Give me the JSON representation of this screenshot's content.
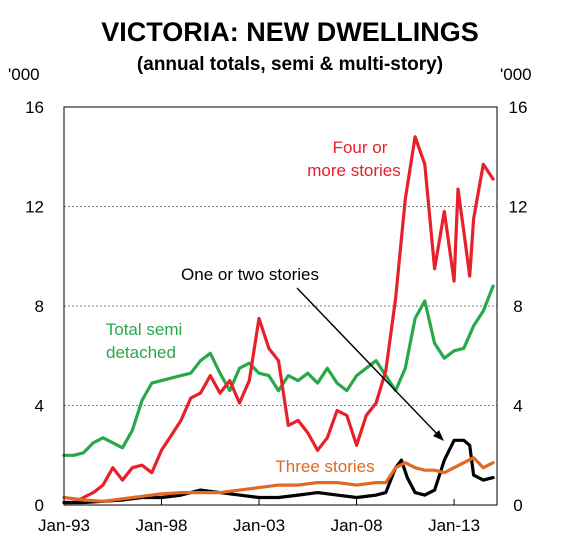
{
  "chart_data": {
    "type": "line",
    "title": "VICTORIA: NEW DWELLINGS",
    "subtitle": "(annual totals, semi & multi-story)",
    "y_unit_left": "'000",
    "y_unit_right": "'000",
    "xlim": [
      1993.0,
      2015.2
    ],
    "ylim": [
      0,
      16
    ],
    "x_ticks": [
      {
        "value": 1993.0,
        "label": "Jan-93"
      },
      {
        "value": 1998.0,
        "label": "Jan-98"
      },
      {
        "value": 2003.0,
        "label": "Jan-03"
      },
      {
        "value": 2008.0,
        "label": "Jan-08"
      },
      {
        "value": 2013.0,
        "label": "Jan-13"
      }
    ],
    "y_ticks": [
      {
        "value": 0,
        "label": "0"
      },
      {
        "value": 4,
        "label": "4"
      },
      {
        "value": 8,
        "label": "8"
      },
      {
        "value": 12,
        "label": "12"
      },
      {
        "value": 16,
        "label": "16"
      }
    ],
    "grid": "horizontal-dashed",
    "annotations": [
      {
        "text": "Four or",
        "color": "#e8202a"
      },
      {
        "text": "more stories",
        "color": "#e8202a"
      },
      {
        "text": "One or two stories",
        "color": "#000000"
      },
      {
        "text": "Total semi",
        "color": "#29a84a"
      },
      {
        "text": "detached",
        "color": "#29a84a"
      },
      {
        "text": "Three stories",
        "color": "#e06a22"
      }
    ],
    "series": [
      {
        "color": "#29a84a",
        "x": [
          1993.0,
          1993.5,
          1994.0,
          1994.5,
          1995.0,
          1995.5,
          1996.0,
          1996.5,
          1997.0,
          1997.5,
          1998.0,
          1998.5,
          1999.0,
          1999.5,
          2000.0,
          2000.5,
          2001.0,
          2001.5,
          2002.0,
          2002.5,
          2003.0,
          2003.5,
          2004.0,
          2004.5,
          2005.0,
          2005.5,
          2006.0,
          2006.5,
          2007.0,
          2007.5,
          2008.0,
          2008.5,
          2009.0,
          2009.5,
          2010.0,
          2010.5,
          2011.0,
          2011.5,
          2012.0,
          2012.5,
          2013.0,
          2013.5,
          2014.0,
          2014.5,
          2015.0
        ],
        "values": [
          2.0,
          2.0,
          2.1,
          2.5,
          2.7,
          2.5,
          2.3,
          3.0,
          4.2,
          4.9,
          5.0,
          5.1,
          5.2,
          5.3,
          5.8,
          6.1,
          5.3,
          4.6,
          5.5,
          5.7,
          5.3,
          5.2,
          4.6,
          5.2,
          5.0,
          5.3,
          4.9,
          5.5,
          4.9,
          4.6,
          5.2,
          5.5,
          5.8,
          5.2,
          4.6,
          5.5,
          7.5,
          8.2,
          6.5,
          5.9,
          6.2,
          6.3,
          7.2,
          7.8,
          8.8
        ]
      },
      {
        "color": "#e8202a",
        "x": [
          1993.0,
          1993.5,
          1994.0,
          1994.5,
          1995.0,
          1995.5,
          1996.0,
          1996.5,
          1997.0,
          1997.5,
          1998.0,
          1998.5,
          1999.0,
          1999.5,
          2000.0,
          2000.5,
          2001.0,
          2001.5,
          2002.0,
          2002.5,
          2003.0,
          2003.5,
          2004.0,
          2004.5,
          2005.0,
          2005.5,
          2006.0,
          2006.5,
          2007.0,
          2007.5,
          2008.0,
          2008.5,
          2009.0,
          2009.5,
          2010.0,
          2010.5,
          2011.0,
          2011.5,
          2012.0,
          2012.5,
          2013.0,
          2013.2,
          2013.5,
          2013.8,
          2014.0,
          2014.5,
          2015.0
        ],
        "values": [
          0.1,
          0.1,
          0.3,
          0.5,
          0.8,
          1.5,
          1.0,
          1.5,
          1.6,
          1.3,
          2.2,
          2.8,
          3.4,
          4.3,
          4.5,
          5.2,
          4.5,
          5.0,
          4.1,
          5.0,
          7.5,
          6.3,
          5.8,
          3.2,
          3.4,
          2.9,
          2.2,
          2.7,
          3.8,
          3.6,
          2.4,
          3.6,
          4.1,
          5.4,
          8.3,
          12.3,
          14.8,
          13.7,
          9.5,
          11.8,
          9.0,
          12.7,
          11.0,
          9.2,
          11.5,
          13.7,
          13.1
        ]
      },
      {
        "color": "#000000",
        "x": [
          1993.0,
          1994.0,
          1995.0,
          1996.0,
          1997.0,
          1998.0,
          1999.0,
          2000.0,
          2001.0,
          2002.0,
          2003.0,
          2004.0,
          2005.0,
          2006.0,
          2007.0,
          2008.0,
          2009.0,
          2009.5,
          2010.0,
          2010.3,
          2010.6,
          2011.0,
          2011.5,
          2012.0,
          2012.5,
          2013.0,
          2013.5,
          2013.8,
          2014.0,
          2014.5,
          2015.0
        ],
        "values": [
          0.1,
          0.1,
          0.15,
          0.2,
          0.3,
          0.3,
          0.4,
          0.6,
          0.5,
          0.4,
          0.3,
          0.3,
          0.4,
          0.5,
          0.4,
          0.3,
          0.4,
          0.5,
          1.5,
          1.8,
          1.1,
          0.5,
          0.4,
          0.6,
          1.8,
          2.6,
          2.6,
          2.4,
          1.2,
          1.0,
          1.1
        ]
      },
      {
        "color": "#e06a22",
        "x": [
          1993.0,
          1994.0,
          1995.0,
          1996.0,
          1997.0,
          1998.0,
          1999.0,
          2000.0,
          2001.0,
          2002.0,
          2003.0,
          2004.0,
          2005.0,
          2006.0,
          2007.0,
          2008.0,
          2009.0,
          2009.5,
          2010.0,
          2010.5,
          2011.0,
          2011.5,
          2012.0,
          2012.5,
          2013.0,
          2013.5,
          2014.0,
          2014.5,
          2015.0
        ],
        "values": [
          0.3,
          0.2,
          0.15,
          0.25,
          0.35,
          0.45,
          0.5,
          0.5,
          0.5,
          0.6,
          0.7,
          0.8,
          0.8,
          0.9,
          0.9,
          0.8,
          0.9,
          0.9,
          1.5,
          1.7,
          1.5,
          1.4,
          1.4,
          1.3,
          1.5,
          1.7,
          1.9,
          1.5,
          1.7
        ]
      }
    ]
  }
}
